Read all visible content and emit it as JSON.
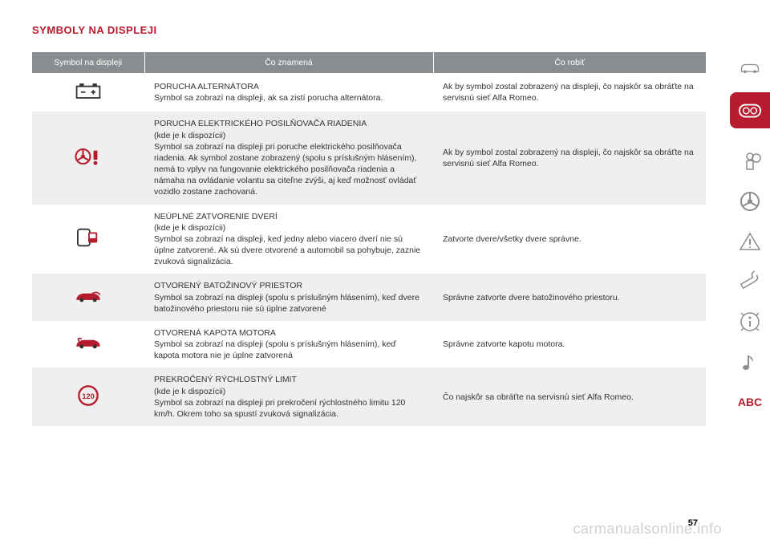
{
  "title": "SYMBOLY NA DISPLEJI",
  "columns": {
    "c1": "Symbol na displeji",
    "c2": "Čo znamená",
    "c3": "Čo robiť"
  },
  "rows": [
    {
      "meaning": "PORUCHA ALTERNÁTORA\nSymbol sa zobrazí na displeji, ak sa zistí porucha alternátora.",
      "action": "Ak by symbol zostal zobrazený na displeji, čo najskôr sa obráťte na servisnú sieť Alfa Romeo.",
      "icon": "battery"
    },
    {
      "meaning": "PORUCHA ELEKTRICKÉHO POSILŇOVAČA RIADENIA\n(kde je k dispozícii)\nSymbol sa zobrazí na displeji pri poruche elektrického posilňovača riadenia. Ak symbol zostane zobrazený (spolu s príslušným hlásením), nemá to vplyv na fungovanie elektrického posilňovača riadenia a námaha na ovládanie volantu sa citeľne zvýši, aj keď možnosť ovládať vozidlo zostane zachovaná.",
      "action": "Ak by symbol zostal zobrazený na displeji, čo najskôr sa obráťte na servisnú sieť Alfa Romeo.",
      "icon": "steering"
    },
    {
      "meaning": "NEÚPLNÉ ZATVORENIE DVERÍ\n(kde je k dispozícii)\nSymbol sa zobrazí na displeji, keď jedny alebo viacero dverí nie sú úplne zatvorené. Ak sú dvere otvorené a automobil sa pohybuje, zaznie zvuková signalizácia.",
      "action": "Zatvorte dvere/všetky dvere správne.",
      "icon": "door"
    },
    {
      "meaning": "OTVORENÝ BATOŽINOVÝ PRIESTOR\nSymbol sa zobrazí na displeji (spolu s príslušným hlásením), keď dvere batožinového priestoru nie sú úplne zatvorené",
      "action": "Správne zatvorte dvere batožinového priestoru.",
      "icon": "trunk"
    },
    {
      "meaning": "OTVORENÁ KAPOTA MOTORA\nSymbol sa zobrazí na displeji (spolu s príslušným hlásením), keď kapota motora nie je úplne zatvorená",
      "action": "Správne zatvorte kapotu motora.",
      "icon": "hood"
    },
    {
      "meaning": "PREKROČENÝ RÝCHLOSTNÝ LIMIT\n(kde je k dispozícii)\nSymbol sa zobrazí na displeji pri prekročení rýchlostného limitu 120 km/h. Okrem toho sa spustí zvuková signalizácia.",
      "action": "Čo najskôr sa obráťte na servisnú sieť Alfa Romeo.",
      "icon": "speed120"
    }
  ],
  "pageNumber": "57",
  "watermark": "carmanualsonline.info",
  "sidebar": {
    "abc": "ABC"
  }
}
